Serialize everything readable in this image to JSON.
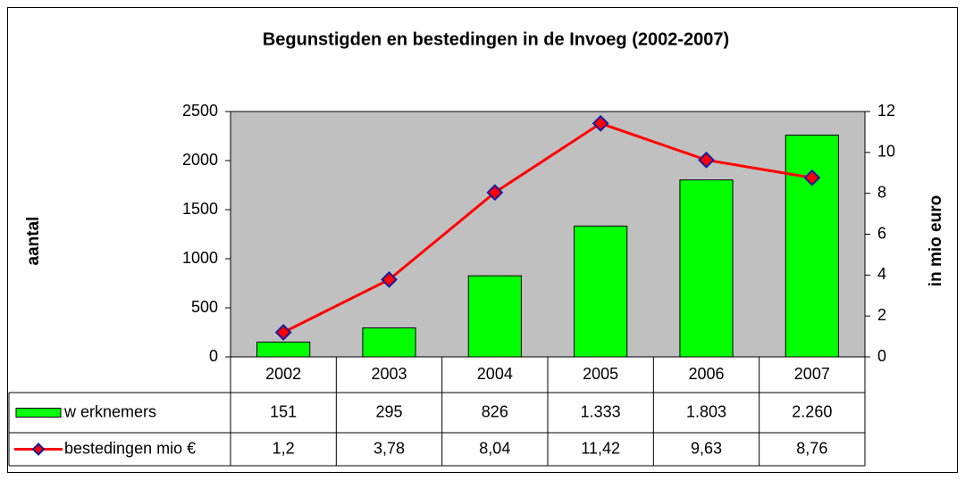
{
  "chart_data": {
    "type": "bar",
    "title": "Begunstigden en bestedingen in de Invoeg (2002-2007)",
    "ylabel": "aantal",
    "y2label": "in mio euro",
    "categories": [
      "2002",
      "2003",
      "2004",
      "2005",
      "2006",
      "2007"
    ],
    "series": [
      {
        "name": "w erknemers",
        "type": "bar",
        "color": "#00ff00",
        "values": [
          151,
          295,
          826,
          1333,
          1803,
          2260
        ],
        "value_labels": [
          "151",
          "295",
          "826",
          "1.333",
          "1.803",
          "2.260"
        ]
      },
      {
        "name": "bestedingen mio €",
        "type": "line",
        "axis": "y2",
        "color": "#ff0000",
        "marker_color": "#ff0000",
        "marker_edge": "#1a1a9c",
        "values": [
          1.2,
          3.78,
          8.04,
          11.42,
          9.63,
          8.76
        ],
        "value_labels": [
          "1,2",
          "3,78",
          "8,04",
          "11,42",
          "9,63",
          "8,76"
        ]
      }
    ],
    "ylim": [
      0,
      2500
    ],
    "yticks": [
      0,
      500,
      1000,
      1500,
      2000,
      2500
    ],
    "y2lim": [
      0,
      12
    ],
    "y2ticks": [
      0,
      2,
      4,
      6,
      8,
      10,
      12
    ],
    "grid": false,
    "data_table": true
  }
}
